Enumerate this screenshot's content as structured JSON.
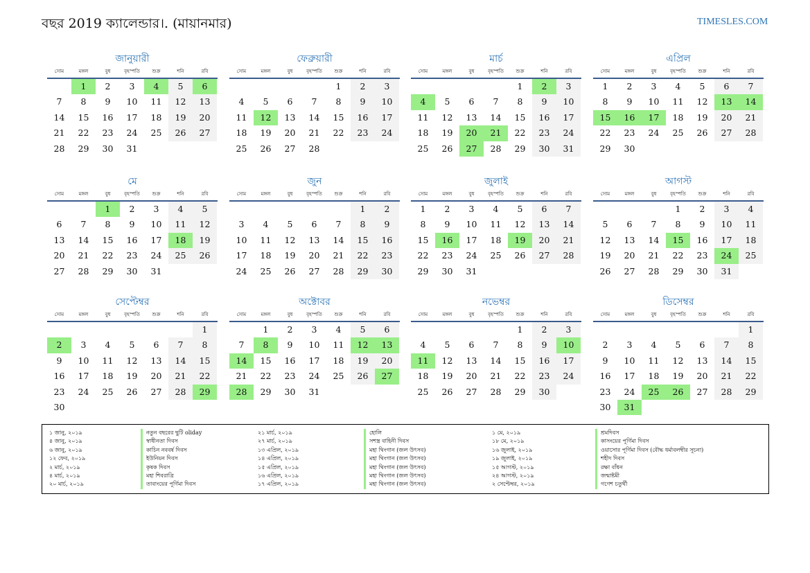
{
  "header": {
    "title": "বছর 2019 ক্যালেন্ডার।. (মায়ানমার)",
    "brand": "TIMESLES.COM"
  },
  "weekdays": [
    "সোম",
    "মঙ্গল",
    "বুধ",
    "বৃহস্পতি",
    "শুক্র",
    "শনি",
    "রবি"
  ],
  "months": [
    {
      "name": "জানুয়ারী",
      "offset": 1,
      "days": 31,
      "holidays": [
        1,
        4,
        6
      ]
    },
    {
      "name": "ফেব্রুয়ারী",
      "offset": 4,
      "days": 28,
      "holidays": [
        12
      ]
    },
    {
      "name": "মার্চ",
      "offset": 4,
      "days": 31,
      "holidays": [
        2,
        4,
        20,
        21,
        27
      ]
    },
    {
      "name": "এপ্রিল",
      "offset": 0,
      "days": 30,
      "holidays": [
        13,
        14,
        15,
        16,
        17
      ]
    },
    {
      "name": "মে",
      "offset": 2,
      "days": 31,
      "holidays": [
        1,
        18
      ]
    },
    {
      "name": "জুন",
      "offset": 5,
      "days": 30,
      "holidays": []
    },
    {
      "name": "জুলাই",
      "offset": 0,
      "days": 31,
      "holidays": [
        16,
        19
      ]
    },
    {
      "name": "আগস্ট",
      "offset": 3,
      "days": 31,
      "holidays": [
        15,
        24
      ]
    },
    {
      "name": "সেপ্টেম্বর",
      "offset": 6,
      "days": 30,
      "holidays": [
        2,
        29
      ]
    },
    {
      "name": "অক্টোবর",
      "offset": 1,
      "days": 31,
      "holidays": [
        8,
        12,
        13,
        14,
        27,
        28
      ]
    },
    {
      "name": "নভেম্বর",
      "offset": 4,
      "days": 30,
      "holidays": [
        10,
        11
      ]
    },
    {
      "name": "ডিসেম্বর",
      "offset": 6,
      "days": 31,
      "holidays": [
        25,
        26,
        31
      ]
    }
  ],
  "holidays": [
    {
      "date": "১ জানু, ২০১৯",
      "name": "নতুন বছরের ছুটি oliday"
    },
    {
      "date": "৪ জানু, ২০১৯",
      "name": "স্বাধীনতা দিবস"
    },
    {
      "date": "৬ জানু, ২০১৯",
      "name": "কাচিন নববর্ষ দিবস"
    },
    {
      "date": "১২ ফেব, ২০১৯",
      "name": "ইউনিয়ন দিবস"
    },
    {
      "date": "২ মার্চ, ২০১৯",
      "name": "কৃষক দিবস"
    },
    {
      "date": "৪ মার্চ, ২০১৯",
      "name": "মহা শিবরাত্রি"
    },
    {
      "date": "২০ মার্চ, ২০১৯",
      "name": "তাবাংয়ের পূর্ণিমা দিবস"
    },
    {
      "date": "২১ মার্চ, ২০১৯",
      "name": "হোলি"
    },
    {
      "date": "২৭ মার্চ, ২০১৯",
      "name": "সশস্ত্র বাহিনী দিবস"
    },
    {
      "date": "১৩ এপ্রিল, ২০১৯",
      "name": "মহা থিংগান (জল উৎসব)"
    },
    {
      "date": "১৪ এপ্রিল, ২০১৯",
      "name": "মহা থিংগান (জল উৎসব)"
    },
    {
      "date": "১৫ এপ্রিল, ২০১৯",
      "name": "মহা থিংগান (জল উৎসব)"
    },
    {
      "date": "১৬ এপ্রিল, ২০১৯",
      "name": "মহা থিংগান (জল উৎসব)"
    },
    {
      "date": "১৭ এপ্রিল, ২০১৯",
      "name": "মহা থিংগান (জল উৎসব)"
    },
    {
      "date": "১ মে, ২০১৯",
      "name": "শ্রমদিবস"
    },
    {
      "date": "১৮ মে, ২০১৯",
      "name": "কাসংয়ের পূর্ণিমা দিবস"
    },
    {
      "date": "১৬ জুলাই, ২০১৯",
      "name": "ওয়াসোর পূর্ণিমা দিবস (বৌদ্ধ ধর্মাবলম্বীর সূচনা)"
    },
    {
      "date": "১৯ জুলাই, ২০১৯",
      "name": "শহীদ দিবস"
    },
    {
      "date": "১৫ আগস্ট, ২০১৯",
      "name": "রক্ষা বাঁধন"
    },
    {
      "date": "২৪ আগস্ট, ২০১৯",
      "name": "জন্মাষ্টমী"
    },
    {
      "date": "২ সেপ্টেম্বর, ২০১৯",
      "name": "গণেশ চতুর্থী"
    }
  ]
}
